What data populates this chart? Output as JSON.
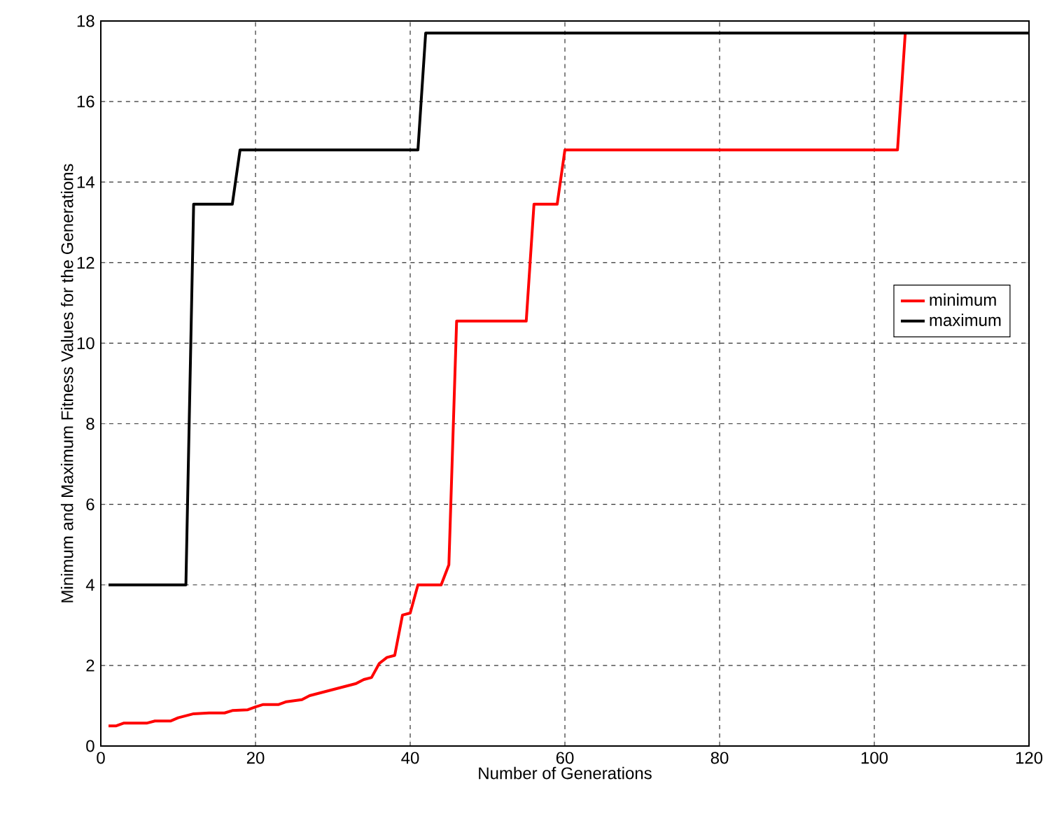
{
  "chart_data": {
    "type": "line",
    "xlabel": "Number of Generations",
    "ylabel": "Minimum and Maximum Fitness Values for the Generations",
    "xlim": [
      0,
      120
    ],
    "ylim": [
      0,
      18
    ],
    "xticks": [
      0,
      20,
      40,
      60,
      80,
      100,
      120
    ],
    "yticks": [
      0,
      2,
      4,
      6,
      8,
      10,
      12,
      14,
      16,
      18
    ],
    "grid": true,
    "legend": "right",
    "line_style": "solid",
    "marker": "none",
    "series": [
      {
        "name": "minimum",
        "color": "#ff0000",
        "x": [
          1,
          2,
          3,
          6,
          7,
          9,
          10,
          12,
          14,
          16,
          17,
          19,
          20,
          21,
          23,
          24,
          26,
          27,
          29,
          31,
          33,
          34,
          35,
          36,
          37,
          38,
          39,
          40,
          41,
          44,
          45,
          46,
          55,
          56,
          59,
          60,
          103,
          104
        ],
        "values": [
          0.5,
          0.5,
          0.57,
          0.57,
          0.62,
          0.62,
          0.7,
          0.8,
          0.82,
          0.82,
          0.88,
          0.9,
          0.97,
          1.03,
          1.03,
          1.1,
          1.15,
          1.25,
          1.35,
          1.45,
          1.55,
          1.65,
          1.7,
          2.05,
          2.2,
          2.25,
          3.25,
          3.3,
          4.0,
          4.0,
          4.5,
          10.55,
          10.55,
          13.45,
          13.45,
          14.8,
          14.8,
          17.7
        ]
      },
      {
        "name": "maximum",
        "color": "#000000",
        "x": [
          1,
          11,
          12,
          17,
          18,
          41,
          42,
          120
        ],
        "values": [
          4.0,
          4.0,
          13.45,
          13.45,
          14.8,
          14.8,
          17.7,
          17.7
        ]
      }
    ]
  }
}
